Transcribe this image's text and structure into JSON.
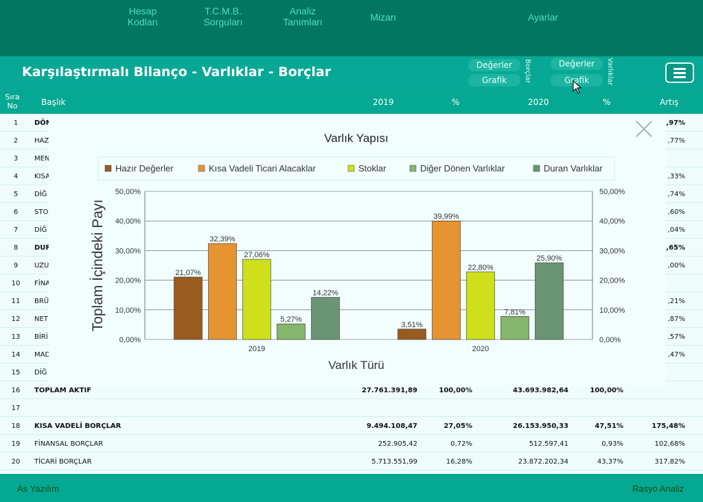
{
  "nav": {
    "items": [
      "Hesap\nKodları",
      "T.C.M.B.\nSorguları",
      "Analiz\nTanımları",
      "Mizan",
      "Ayarlar"
    ]
  },
  "header": {
    "title": "Karşılaştırmalı Bilanço - Varlıklar - Borçlar",
    "borclar_group": {
      "label": "Borçlar",
      "values_button": "Değerler",
      "chart_button": "Grafik"
    },
    "varliklar_group": {
      "label": "Varlıklar",
      "values_button": "Değerler",
      "chart_button": "Grafik"
    },
    "menu_icon": "hamburger-menu-icon"
  },
  "table": {
    "columns": [
      "Sıra\nNo",
      "Başlık",
      "2019",
      "%",
      "2020",
      "%",
      "Artış"
    ],
    "rows": [
      {
        "no": "1",
        "title": "DÖN",
        "v2019": "",
        "p2019": "",
        "v2020": "",
        "p2020": "",
        "artis": ",97%",
        "bold": true
      },
      {
        "no": "2",
        "title": "HAZ",
        "v2019": "",
        "p2019": "",
        "v2020": "",
        "p2020": "",
        "artis": ",77%",
        "bold": false
      },
      {
        "no": "3",
        "title": "MEN",
        "v2019": "",
        "p2019": "",
        "v2020": "",
        "p2020": "",
        "artis": "",
        "bold": false
      },
      {
        "no": "4",
        "title": "KISA",
        "v2019": "",
        "p2019": "",
        "v2020": "",
        "p2020": "",
        "artis": ",33%",
        "bold": false
      },
      {
        "no": "5",
        "title": "DİĞ",
        "v2019": "",
        "p2019": "",
        "v2020": "",
        "p2020": "",
        "artis": ",74%",
        "bold": false
      },
      {
        "no": "6",
        "title": "STO",
        "v2019": "",
        "p2019": "",
        "v2020": "",
        "p2020": "",
        "artis": ",60%",
        "bold": false
      },
      {
        "no": "7",
        "title": "DİĞ",
        "v2019": "",
        "p2019": "",
        "v2020": "",
        "p2020": "",
        "artis": ",04%",
        "bold": false
      },
      {
        "no": "8",
        "title": "DUR",
        "v2019": "",
        "p2019": "",
        "v2020": "",
        "p2020": "",
        "artis": ",65%",
        "bold": true
      },
      {
        "no": "9",
        "title": "UZU",
        "v2019": "",
        "p2019": "",
        "v2020": "",
        "p2020": "",
        "artis": ",00%",
        "bold": false
      },
      {
        "no": "10",
        "title": "FİNA",
        "v2019": "",
        "p2019": "",
        "v2020": "",
        "p2020": "",
        "artis": "",
        "bold": false
      },
      {
        "no": "11",
        "title": "BRÜ",
        "v2019": "",
        "p2019": "",
        "v2020": "",
        "p2020": "",
        "artis": ",21%",
        "bold": false
      },
      {
        "no": "12",
        "title": "NET",
        "v2019": "",
        "p2019": "",
        "v2020": "",
        "p2020": "",
        "artis": ",87%",
        "bold": false
      },
      {
        "no": "13",
        "title": "BİRİ",
        "v2019": "",
        "p2019": "",
        "v2020": "",
        "p2020": "",
        "artis": ",57%",
        "bold": false
      },
      {
        "no": "14",
        "title": "MAD",
        "v2019": "",
        "p2019": "",
        "v2020": "",
        "p2020": "",
        "artis": ",47%",
        "bold": false
      },
      {
        "no": "15",
        "title": "DİĞ",
        "v2019": "",
        "p2019": "",
        "v2020": "",
        "p2020": "",
        "artis": "",
        "bold": false
      },
      {
        "no": "16",
        "title": "TOPLAM AKTİF",
        "v2019": "27.761.391,89",
        "p2019": "100,00%",
        "v2020": "43.693.982,64",
        "p2020": "100,00%",
        "artis": "",
        "bold": true
      },
      {
        "no": "17",
        "title": "",
        "v2019": "",
        "p2019": "",
        "v2020": "",
        "p2020": "",
        "artis": "",
        "bold": false
      },
      {
        "no": "18",
        "title": "KISA VADELİ BORÇLAR",
        "v2019": "9.494.108,47",
        "p2019": "27,05%",
        "v2020": "26.153.950,33",
        "p2020": "47,51%",
        "artis": "175,48%",
        "bold": true
      },
      {
        "no": "19",
        "title": "FİNANSAL BORÇLAR",
        "v2019": "252.905,42",
        "p2019": "0,72%",
        "v2020": "512.597,41",
        "p2020": "0,93%",
        "artis": "102,68%",
        "bold": false
      },
      {
        "no": "20",
        "title": "TİCARİ BORÇLAR",
        "v2019": "5.713.551,99",
        "p2019": "16,28%",
        "v2020": "23.872.202,34",
        "p2020": "43,37%",
        "artis": "317,82%",
        "bold": false
      }
    ]
  },
  "footer": {
    "left": "As Yazılım",
    "right": "Rasyo Analiz"
  },
  "chart_data": {
    "type": "bar",
    "title": "Varlık Yapısı",
    "xlabel": "Varlık Türü",
    "ylabel": "Toplam İçindeki Payı",
    "categories": [
      "2019",
      "2020"
    ],
    "ylim": [
      0,
      50
    ],
    "yticks": [
      "0,00%",
      "10,00%",
      "20,00%",
      "30,00%",
      "40,00%",
      "50,00%"
    ],
    "legend_position": "top",
    "series": [
      {
        "name": "Hazır Değerler",
        "color": "#9a5b1e",
        "values": [
          21.07,
          3.51
        ],
        "labels": [
          "21,07%",
          "3,51%"
        ]
      },
      {
        "name": "Kısa Vadeli Ticari Alacaklar",
        "color": "#e69332",
        "values": [
          32.39,
          39.99
        ],
        "labels": [
          "32,39%",
          "39,99%"
        ]
      },
      {
        "name": "Stoklar",
        "color": "#cde01a",
        "values": [
          27.06,
          22.8
        ],
        "labels": [
          "27,06%",
          "22,80%"
        ]
      },
      {
        "name": "Diğer Dönen Varlıklar",
        "color": "#86b56c",
        "values": [
          5.27,
          7.81
        ],
        "labels": [
          "5,27%",
          "7,81%"
        ]
      },
      {
        "name": "Duran Varlıklar",
        "color": "#6a9473",
        "values": [
          14.22,
          25.9
        ],
        "labels": [
          "14,22%",
          "25,90%"
        ]
      }
    ]
  }
}
